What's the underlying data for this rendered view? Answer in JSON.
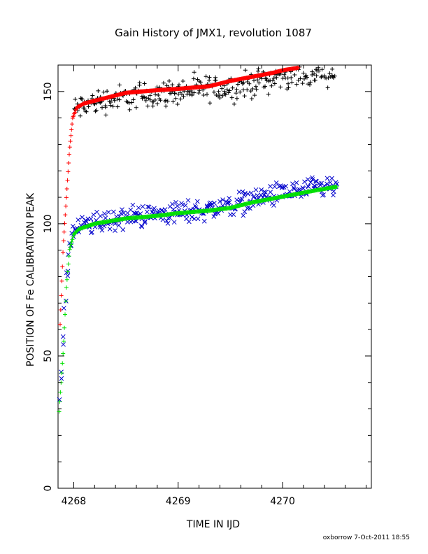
{
  "chart_data": {
    "type": "scatter",
    "title": "Gain History of JMX1, revolution 1087",
    "xlabel": "TIME IN IJD",
    "ylabel": "POSITION OF Fe CALIBRATION PEAK",
    "footer": "oxborrow   7-Oct-2011 18:55",
    "xlim": [
      4267.85,
      4270.85
    ],
    "ylim": [
      0,
      160
    ],
    "x_ticks": [
      {
        "value": 4268,
        "label": "4268"
      },
      {
        "value": 4269,
        "label": "4269"
      },
      {
        "value": 4270,
        "label": "4270"
      }
    ],
    "y_ticks": [
      {
        "value": 0,
        "label": "0"
      },
      {
        "value": 50,
        "label": "50"
      },
      {
        "value": 100,
        "label": "100"
      },
      {
        "value": 150,
        "label": "150"
      }
    ],
    "x_minor_step": 0.2,
    "y_minor_step": 10,
    "series": [
      {
        "color": "#000000",
        "marker": "plus",
        "scatter": 3.5,
        "trend": [
          [
            4268.0,
            143
          ],
          [
            4268.2,
            146
          ],
          [
            4268.5,
            148
          ],
          [
            4268.8,
            149
          ],
          [
            4269.0,
            150
          ],
          [
            4269.3,
            151
          ],
          [
            4269.6,
            152
          ],
          [
            4269.8,
            154
          ],
          [
            4270.0,
            156
          ],
          [
            4270.3,
            157
          ],
          [
            4270.5,
            158
          ]
        ]
      },
      {
        "color": "#ff0000",
        "marker": "plus",
        "dense": true,
        "trend": [
          [
            4267.87,
            62
          ],
          [
            4267.9,
            92
          ],
          [
            4267.93,
            110
          ],
          [
            4267.96,
            128
          ],
          [
            4267.99,
            140
          ],
          [
            4268.03,
            144
          ],
          [
            4268.1,
            145.5
          ],
          [
            4268.3,
            147.5
          ],
          [
            4268.5,
            149.5
          ],
          [
            4268.8,
            150.5
          ],
          [
            4269.0,
            151
          ],
          [
            4269.3,
            152
          ],
          [
            4269.5,
            154
          ],
          [
            4269.7,
            155.5
          ],
          [
            4269.9,
            157
          ],
          [
            4270.0,
            158
          ],
          [
            4270.15,
            159
          ]
        ]
      },
      {
        "color": "#0000cc",
        "marker": "cross",
        "scatter": 3,
        "trend": [
          [
            4267.87,
            33
          ],
          [
            4267.9,
            55
          ],
          [
            4267.93,
            78
          ],
          [
            4267.96,
            92
          ],
          [
            4268.0,
            97
          ],
          [
            4268.1,
            99
          ],
          [
            4268.3,
            101
          ],
          [
            4268.6,
            103
          ],
          [
            4268.9,
            104
          ],
          [
            4269.2,
            105
          ],
          [
            4269.5,
            107
          ],
          [
            4269.8,
            110
          ],
          [
            4270.1,
            112
          ],
          [
            4270.3,
            113
          ],
          [
            4270.52,
            114
          ]
        ]
      },
      {
        "color": "#00e000",
        "marker": "plus",
        "dense": true,
        "trend": [
          [
            4267.86,
            29
          ],
          [
            4267.9,
            52
          ],
          [
            4267.93,
            76
          ],
          [
            4267.96,
            90
          ],
          [
            4268.0,
            96
          ],
          [
            4268.05,
            98
          ],
          [
            4268.2,
            100
          ],
          [
            4268.5,
            102
          ],
          [
            4268.8,
            103
          ],
          [
            4269.0,
            104
          ],
          [
            4269.3,
            105
          ],
          [
            4269.5,
            106
          ],
          [
            4269.7,
            108
          ],
          [
            4269.9,
            109.5
          ],
          [
            4270.1,
            111
          ],
          [
            4270.3,
            112.5
          ],
          [
            4270.52,
            114
          ]
        ]
      }
    ]
  }
}
